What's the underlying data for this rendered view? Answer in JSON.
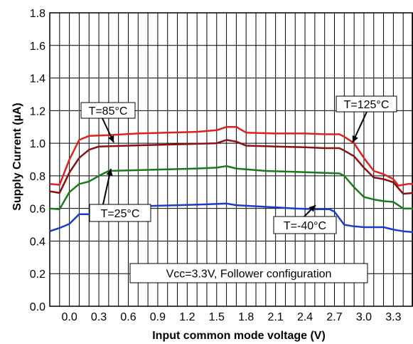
{
  "chart_data": {
    "type": "line",
    "title": "",
    "xlabel": "Input common mode voltage (V)",
    "ylabel": "Supply Current (µA)",
    "xlim": [
      -0.2,
      3.5
    ],
    "ylim": [
      0.0,
      1.8
    ],
    "grid": true,
    "x_ticks": [
      0.0,
      0.3,
      0.6,
      0.9,
      1.2,
      1.5,
      1.8,
      2.1,
      2.4,
      2.7,
      3.0,
      3.3
    ],
    "x_tick_labels": [
      "0.0",
      "0.3",
      "0.6",
      "0.9",
      "1.2",
      "1.5",
      "1.8",
      "2.1",
      "2.4",
      "2.7",
      "3.0",
      "3.3"
    ],
    "y_ticks": [
      0.0,
      0.2,
      0.4,
      0.6,
      0.8,
      1.0,
      1.2,
      1.4,
      1.6,
      1.8
    ],
    "y_tick_labels": [
      "0.0",
      "0.2",
      "0.4",
      "0.6",
      "0.8",
      "1.0",
      "1.2",
      "1.4",
      "1.6",
      "1.8"
    ],
    "series": [
      {
        "name": "T=125°C",
        "color": "#e02020",
        "points": [
          [
            -0.2,
            0.75
          ],
          [
            -0.1,
            0.745
          ],
          [
            0.0,
            0.9
          ],
          [
            0.1,
            1.02
          ],
          [
            0.2,
            1.045
          ],
          [
            0.4,
            1.05
          ],
          [
            0.7,
            1.06
          ],
          [
            1.0,
            1.065
          ],
          [
            1.3,
            1.07
          ],
          [
            1.5,
            1.08
          ],
          [
            1.6,
            1.1
          ],
          [
            1.7,
            1.1
          ],
          [
            1.8,
            1.065
          ],
          [
            2.1,
            1.06
          ],
          [
            2.4,
            1.06
          ],
          [
            2.6,
            1.055
          ],
          [
            2.75,
            1.055
          ],
          [
            2.8,
            1.04
          ],
          [
            2.9,
            1.0
          ],
          [
            3.0,
            0.91
          ],
          [
            3.1,
            0.83
          ],
          [
            3.2,
            0.81
          ],
          [
            3.3,
            0.78
          ],
          [
            3.35,
            0.74
          ],
          [
            3.45,
            0.75
          ],
          [
            3.5,
            0.75
          ]
        ]
      },
      {
        "name": "T=85°C",
        "color": "#8b1010",
        "points": [
          [
            -0.2,
            0.705
          ],
          [
            -0.1,
            0.695
          ],
          [
            0.0,
            0.82
          ],
          [
            0.1,
            0.91
          ],
          [
            0.2,
            0.96
          ],
          [
            0.3,
            0.98
          ],
          [
            0.6,
            0.985
          ],
          [
            0.9,
            0.99
          ],
          [
            1.2,
            0.995
          ],
          [
            1.5,
            1.0
          ],
          [
            1.6,
            1.02
          ],
          [
            1.7,
            1.01
          ],
          [
            1.8,
            0.985
          ],
          [
            2.1,
            0.98
          ],
          [
            2.4,
            0.975
          ],
          [
            2.6,
            0.97
          ],
          [
            2.75,
            0.97
          ],
          [
            2.8,
            0.955
          ],
          [
            2.9,
            0.92
          ],
          [
            3.0,
            0.85
          ],
          [
            3.1,
            0.79
          ],
          [
            3.2,
            0.78
          ],
          [
            3.3,
            0.76
          ],
          [
            3.4,
            0.69
          ],
          [
            3.5,
            0.695
          ]
        ]
      },
      {
        "name": "T=25°C",
        "color": "#1a7a1a",
        "points": [
          [
            -0.2,
            0.6
          ],
          [
            -0.1,
            0.595
          ],
          [
            0.0,
            0.7
          ],
          [
            0.1,
            0.75
          ],
          [
            0.2,
            0.765
          ],
          [
            0.3,
            0.8
          ],
          [
            0.4,
            0.83
          ],
          [
            0.7,
            0.835
          ],
          [
            1.0,
            0.84
          ],
          [
            1.3,
            0.845
          ],
          [
            1.5,
            0.85
          ],
          [
            1.6,
            0.86
          ],
          [
            1.7,
            0.845
          ],
          [
            2.0,
            0.83
          ],
          [
            2.3,
            0.825
          ],
          [
            2.5,
            0.82
          ],
          [
            2.75,
            0.815
          ],
          [
            2.8,
            0.8
          ],
          [
            2.9,
            0.73
          ],
          [
            3.0,
            0.67
          ],
          [
            3.1,
            0.655
          ],
          [
            3.2,
            0.645
          ],
          [
            3.3,
            0.64
          ],
          [
            3.4,
            0.6
          ],
          [
            3.5,
            0.6
          ]
        ]
      },
      {
        "name": "T=-40°C",
        "color": "#1a3ccc",
        "points": [
          [
            -0.2,
            0.46
          ],
          [
            -0.1,
            0.48
          ],
          [
            0.0,
            0.505
          ],
          [
            0.1,
            0.565
          ],
          [
            0.2,
            0.565
          ],
          [
            0.3,
            0.575
          ],
          [
            0.4,
            0.59
          ],
          [
            0.5,
            0.61
          ],
          [
            0.8,
            0.615
          ],
          [
            1.1,
            0.62
          ],
          [
            1.4,
            0.625
          ],
          [
            1.6,
            0.63
          ],
          [
            1.7,
            0.62
          ],
          [
            2.0,
            0.61
          ],
          [
            2.3,
            0.6
          ],
          [
            2.5,
            0.595
          ],
          [
            2.65,
            0.595
          ],
          [
            2.7,
            0.58
          ],
          [
            2.8,
            0.5
          ],
          [
            2.9,
            0.49
          ],
          [
            3.0,
            0.485
          ],
          [
            3.2,
            0.485
          ],
          [
            3.3,
            0.47
          ],
          [
            3.4,
            0.46
          ],
          [
            3.5,
            0.455
          ]
        ]
      }
    ],
    "annotations": [
      {
        "key": "t85",
        "text": "T=85°C",
        "series": 1
      },
      {
        "key": "t125",
        "text": "T=125°C",
        "series": 0
      },
      {
        "key": "t25",
        "text": "T=25°C",
        "series": 2
      },
      {
        "key": "tm40",
        "text": "T=-40°C",
        "series": 3
      },
      {
        "key": "vcc",
        "text": "Vcc=3.3V, Follower configuration"
      }
    ]
  }
}
